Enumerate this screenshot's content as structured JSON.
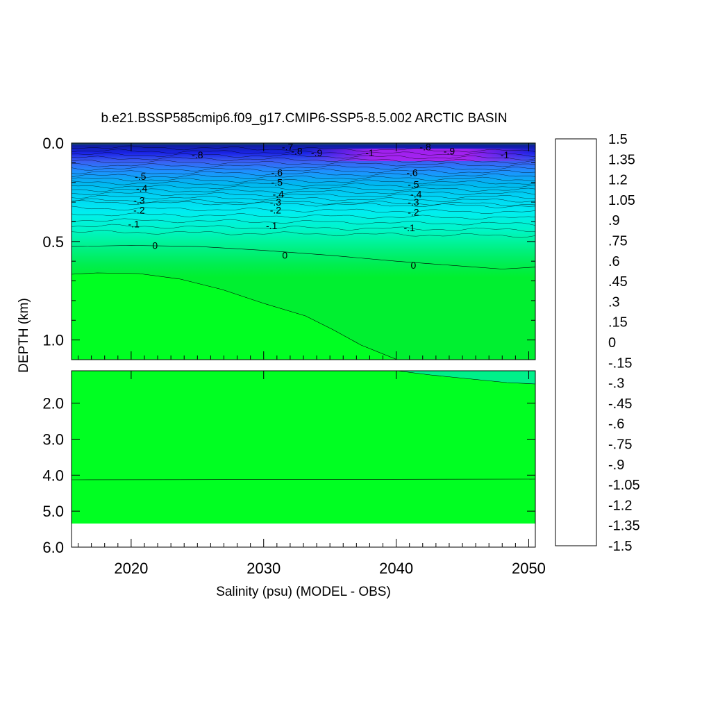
{
  "chart_data": {
    "type": "heatmap",
    "title": "b.e21.BSSP585cmip6.f09_g17.CMIP6-SSP5-8.5.002 ARCTIC BASIN",
    "xlabel": "Salinity (psu) (MODEL - OBS)",
    "ylabel": "DEPTH (km)",
    "xlim": [
      2015.5,
      2050.5
    ],
    "x_ticks": [
      "2020",
      "2030",
      "2040",
      "2050"
    ],
    "y_upper_lim": [
      0.0,
      1.1
    ],
    "y_upper_ticks": [
      "0.0",
      "0.5",
      "1.0"
    ],
    "y_lower_lim": [
      1.1,
      6.0
    ],
    "y_lower_ticks": [
      "2.0",
      "3.0",
      "4.0",
      "5.0",
      "6.0"
    ],
    "colorbar": {
      "min": -1.5,
      "max": 1.5,
      "step": 0.075,
      "labels": [
        "1.5",
        "1.35",
        "1.2",
        "1.05",
        ".9",
        ".75",
        ".6",
        ".45",
        ".3",
        ".15",
        "0",
        "-.15",
        "-.3",
        "-.45",
        "-.6",
        "-.75",
        "-.9",
        "-1.05",
        "-1.2",
        "-1.35",
        "-1.5"
      ]
    },
    "contour_labels": [
      {
        "text": "0",
        "x": 2021.8,
        "depth": 0.52
      },
      {
        "text": "0",
        "x": 2031.6,
        "depth": 0.57
      },
      {
        "text": "0",
        "x": 2041.3,
        "depth": 0.62
      },
      {
        "text": "-.1",
        "x": 2020.2,
        "depth": 0.41
      },
      {
        "text": "-.1",
        "x": 2030.6,
        "depth": 0.42
      },
      {
        "text": "-.1",
        "x": 2041.0,
        "depth": 0.43
      },
      {
        "text": "-.2",
        "x": 2020.6,
        "depth": 0.34
      },
      {
        "text": "-.2",
        "x": 2030.9,
        "depth": 0.34
      },
      {
        "text": "-.2",
        "x": 2041.3,
        "depth": 0.35
      },
      {
        "text": "-.3",
        "x": 2020.6,
        "depth": 0.29
      },
      {
        "text": "-.3",
        "x": 2030.9,
        "depth": 0.3
      },
      {
        "text": "-.3",
        "x": 2041.3,
        "depth": 0.3
      },
      {
        "text": "-.4",
        "x": 2020.8,
        "depth": 0.23
      },
      {
        "text": "-.4",
        "x": 2031.1,
        "depth": 0.26
      },
      {
        "text": "-.4",
        "x": 2041.5,
        "depth": 0.26
      },
      {
        "text": "-.5",
        "x": 2020.7,
        "depth": 0.17
      },
      {
        "text": "-.5",
        "x": 2031.0,
        "depth": 0.2
      },
      {
        "text": "-.5",
        "x": 2041.3,
        "depth": 0.21
      },
      {
        "text": "-.6",
        "x": 2031.0,
        "depth": 0.15
      },
      {
        "text": "-.6",
        "x": 2041.2,
        "depth": 0.15
      },
      {
        "text": "-.8",
        "x": 2025.0,
        "depth": 0.06
      },
      {
        "text": "-.7",
        "x": 2031.8,
        "depth": 0.02
      },
      {
        "text": "-.8",
        "x": 2032.5,
        "depth": 0.04
      },
      {
        "text": "-.9",
        "x": 2034.0,
        "depth": 0.05
      },
      {
        "text": "-1",
        "x": 2038.0,
        "depth": 0.05
      },
      {
        "text": "-.8",
        "x": 2042.2,
        "depth": 0.02
      },
      {
        "text": "-.9",
        "x": 2044.0,
        "depth": 0.04
      },
      {
        "text": "-1",
        "x": 2048.2,
        "depth": 0.06
      }
    ]
  }
}
